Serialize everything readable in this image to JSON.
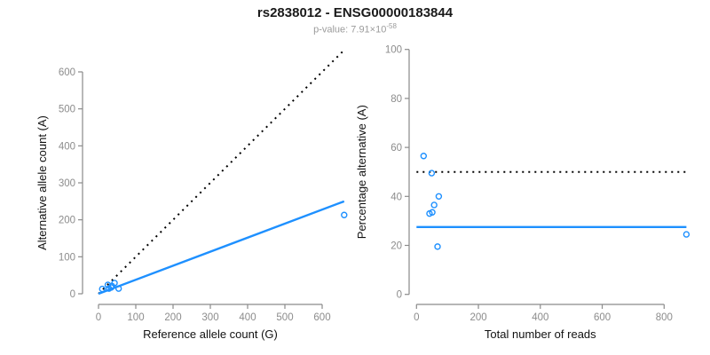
{
  "header": {
    "title": "rs2838012 - ENSG00000183844",
    "p_value_text": "p-value: 7.91×10",
    "p_value_exponent": "-58"
  },
  "colors": {
    "accent_blue": "#1E90FF",
    "line_black": "#000000",
    "axis_gray": "#8a8a8a",
    "tick_label_gray": "#8c8c8c",
    "axis_title_black": "#111111"
  },
  "chart_data": [
    {
      "type": "scatter",
      "xlabel": "Reference allele count (G)",
      "ylabel": "Alternative allele count (A)",
      "xticks": [
        0,
        100,
        200,
        300,
        400,
        500,
        600
      ],
      "yticks": [
        0,
        100,
        200,
        300,
        400,
        500,
        600
      ],
      "xlim": [
        -26,
        686
      ],
      "ylim": [
        -26,
        686
      ],
      "grid": false,
      "point_color": "#1E90FF",
      "points": [
        [
          10,
          13
        ],
        [
          25,
          24
        ],
        [
          28,
          14
        ],
        [
          34,
          17
        ],
        [
          36,
          21
        ],
        [
          43,
          29
        ],
        [
          54,
          14
        ],
        [
          659,
          213
        ]
      ],
      "lines": [
        {
          "name": "identity-line",
          "style": "dotted",
          "color": "#000000",
          "x": [
            0,
            659
          ],
          "y": [
            0,
            659
          ]
        },
        {
          "name": "fit-line",
          "style": "solid",
          "color": "#1E90FF",
          "x": [
            0,
            659
          ],
          "y": [
            0,
            250
          ]
        }
      ]
    },
    {
      "type": "scatter",
      "xlabel": "Total number of reads",
      "ylabel": "Percentage alternative (A)",
      "xticks": [
        0,
        200,
        400,
        600,
        800
      ],
      "yticks": [
        0,
        20,
        40,
        60,
        80,
        100
      ],
      "xlim": [
        -35,
        890
      ],
      "ylim": [
        -4,
        104
      ],
      "grid": false,
      "point_color": "#1E90FF",
      "points": [
        [
          23,
          56.5
        ],
        [
          49,
          49.5
        ],
        [
          42,
          33
        ],
        [
          51,
          33.5
        ],
        [
          57,
          36.5
        ],
        [
          72,
          40
        ],
        [
          68,
          19.5
        ],
        [
          872,
          24.5
        ]
      ],
      "lines": [
        {
          "name": "fifty-percent-line",
          "style": "dotted",
          "color": "#000000",
          "x": [
            0,
            872
          ],
          "y": [
            50,
            50
          ]
        },
        {
          "name": "mean-percentage-line",
          "style": "solid",
          "color": "#1E90FF",
          "x": [
            0,
            872
          ],
          "y": [
            27.5,
            27.5
          ]
        }
      ]
    }
  ]
}
